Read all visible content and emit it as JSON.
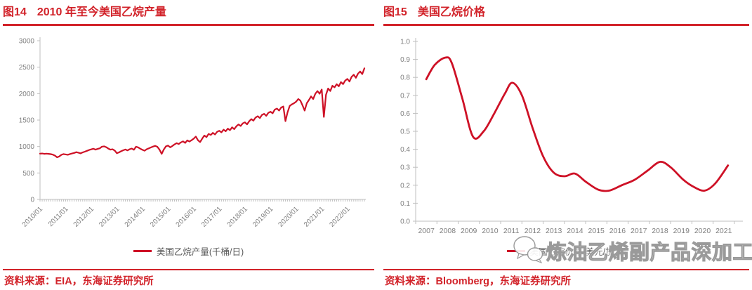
{
  "palette": {
    "accent_red": "#d2232a",
    "line_red": "#ce1126",
    "axis_line": "#bfbfbf",
    "tick_text": "#7f7f7f",
    "legend_text": "#595959"
  },
  "figures": [
    {
      "fig_no": "图14",
      "title": "2010 年至今美国乙烷产量",
      "legend": "美国乙烷产量(千桶/日)",
      "source": "资料来源：EIA，东海证券研究所"
    },
    {
      "fig_no": "图15",
      "title": "美国乙烷价格",
      "legend": "美国乙烷价格(美元/加仑)",
      "source": "资料来源：Bloomberg，东海证券研究所",
      "watermark": {
        "icon": "chat-bubbles-icon",
        "text": "炼油乙烯副产品深加工"
      }
    }
  ],
  "chart_data": [
    {
      "type": "line",
      "title": "2010 年至今美国乙烷产量",
      "xlabel": "",
      "ylabel": "",
      "ylim": [
        0,
        3000
      ],
      "y_ticks": [
        0,
        500,
        1000,
        1500,
        2000,
        2500,
        3000
      ],
      "x_tick_labels": [
        "2010/01",
        "2011/01",
        "2012/01",
        "2013/01",
        "2014/01",
        "2015/01",
        "2016/01",
        "2017/01",
        "2018/01",
        "2019/01",
        "2020/01",
        "2021/01",
        "2022/01"
      ],
      "grid": false,
      "legend_position": "bottom",
      "line_color": "#ce1126",
      "series": [
        {
          "name": "美国乙烷产量(千桶/日)",
          "start": "2010/01",
          "frequency": "monthly",
          "values": [
            865,
            868,
            861,
            866,
            862,
            856,
            847,
            828,
            796,
            813,
            843,
            858,
            851,
            844,
            857,
            868,
            879,
            893,
            884,
            871,
            889,
            902,
            919,
            934,
            947,
            959,
            941,
            954,
            967,
            997,
            1004,
            988,
            961,
            941,
            948,
            924,
            873,
            889,
            911,
            929,
            944,
            927,
            949,
            961,
            939,
            997,
            984,
            958,
            937,
            921,
            949,
            967,
            984,
            999,
            1013,
            994,
            940,
            862,
            944,
            1004,
            1018,
            985,
            1010,
            1039,
            1063,
            1047,
            1078,
            1098,
            1069,
            1116,
            1094,
            1119,
            1148,
            1188,
            1119,
            1085,
            1149,
            1208,
            1178,
            1238,
            1218,
            1258,
            1228,
            1278,
            1298,
            1268,
            1318,
            1289,
            1338,
            1309,
            1363,
            1329,
            1383,
            1418,
            1389,
            1438,
            1458,
            1419,
            1478,
            1518,
            1489,
            1548,
            1573,
            1539,
            1598,
            1618,
            1579,
            1638,
            1658,
            1629,
            1698,
            1718,
            1679,
            1738,
            1758,
            1480,
            1649,
            1768,
            1798,
            1818,
            1848,
            1898,
            1868,
            1779,
            1679,
            1819,
            1879,
            1948,
            1898,
            1998,
            2048,
            1998,
            2078,
            1560,
            1979,
            2098,
            2049,
            2148,
            2119,
            2178,
            2139,
            2218,
            2179,
            2248,
            2278,
            2229,
            2318,
            2358,
            2299,
            2378,
            2418,
            2369,
            2478
          ]
        }
      ]
    },
    {
      "type": "line",
      "smooth": true,
      "title": "美国乙烷价格",
      "xlabel": "",
      "ylabel": "",
      "ylim": [
        0,
        1.0
      ],
      "y_ticks": [
        0,
        0.1,
        0.2,
        0.3,
        0.4,
        0.5,
        0.6,
        0.7,
        0.8,
        0.9,
        1.0
      ],
      "x_tick_labels": [
        "2007",
        "2008",
        "2009",
        "2010",
        "2011",
        "2012",
        "2013",
        "2014",
        "2015",
        "2016",
        "2017",
        "2018",
        "2019",
        "2020",
        "2021"
      ],
      "grid": false,
      "legend_position": "bottom",
      "line_color": "#ce1126",
      "x": [
        2007.0,
        2007.4,
        2007.9,
        2008.2,
        2008.7,
        2009.2,
        2009.7,
        2010.2,
        2010.7,
        2011.05,
        2011.5,
        2012.0,
        2012.5,
        2013.0,
        2013.5,
        2014.0,
        2014.5,
        2015.1,
        2015.6,
        2016.2,
        2016.8,
        2017.4,
        2018.0,
        2018.5,
        2019.1,
        2019.6,
        2020.1,
        2020.6,
        2021.2
      ],
      "values": [
        0.79,
        0.87,
        0.91,
        0.88,
        0.68,
        0.47,
        0.5,
        0.6,
        0.71,
        0.77,
        0.7,
        0.52,
        0.36,
        0.27,
        0.25,
        0.265,
        0.22,
        0.175,
        0.17,
        0.2,
        0.23,
        0.28,
        0.33,
        0.3,
        0.23,
        0.19,
        0.17,
        0.21,
        0.31
      ]
    }
  ]
}
